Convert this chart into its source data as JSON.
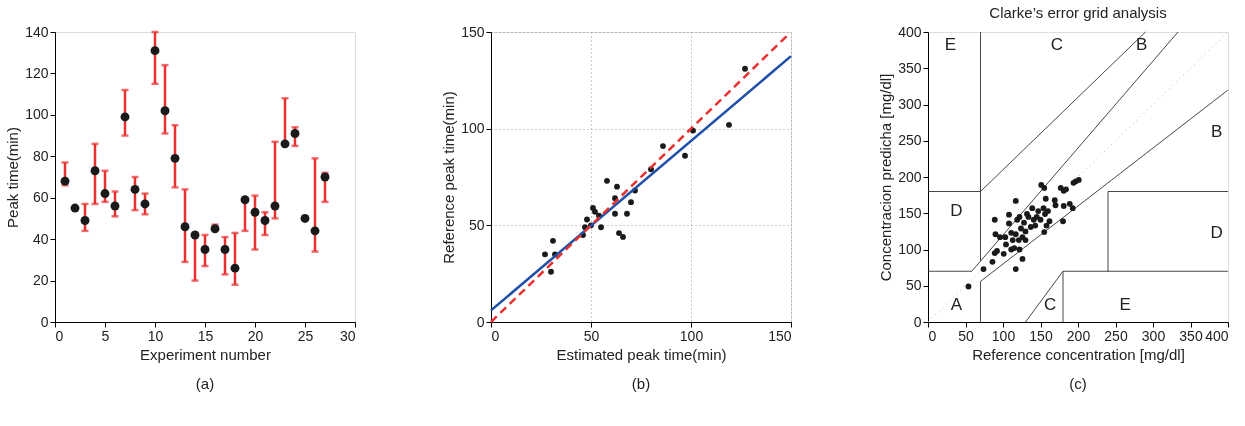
{
  "chart_data": [
    {
      "type": "scatter",
      "xlabel": "Experiment number",
      "ylabel": "Peak time(min)",
      "marker": "circle",
      "xlim": [
        0,
        30
      ],
      "xticks": [
        0,
        5,
        10,
        15,
        20,
        25,
        30
      ],
      "ylim": [
        0,
        140
      ],
      "yticks": [
        0,
        20,
        40,
        60,
        80,
        100,
        120,
        140
      ],
      "annotations": [
        "(a)"
      ],
      "x": [
        1,
        2,
        3,
        4,
        5,
        6,
        7,
        8,
        9,
        10,
        11,
        12,
        13,
        14,
        15,
        16,
        17,
        18,
        19,
        20,
        21,
        22,
        23,
        24,
        25,
        26,
        27
      ],
      "series": [
        {
          "color": "#1a1a1a",
          "values": [
            68,
            55,
            49,
            73,
            62,
            56,
            99,
            64,
            57,
            131,
            102,
            79,
            46,
            42,
            35,
            45,
            35,
            26,
            59,
            53,
            49,
            56,
            86,
            91,
            50,
            44,
            70
          ],
          "errors": [
            [
              66,
              77
            ],
            null,
            [
              44,
              57
            ],
            [
              57,
              86
            ],
            [
              58,
              73
            ],
            [
              51,
              63
            ],
            [
              90,
              112
            ],
            [
              54,
              70
            ],
            [
              52,
              62
            ],
            [
              115,
              140
            ],
            [
              91,
              124
            ],
            [
              65,
              95
            ],
            [
              29,
              64
            ],
            [
              20,
              42
            ],
            [
              27,
              42
            ],
            [
              45,
              47
            ],
            [
              23,
              41
            ],
            [
              18,
              43
            ],
            [
              44,
              59
            ],
            [
              35,
              61
            ],
            [
              42,
              53
            ],
            [
              50,
              87
            ],
            [
              86,
              108
            ],
            [
              85,
              94
            ],
            null,
            [
              34,
              79
            ],
            [
              58,
              72
            ]
          ]
        }
      ]
    },
    {
      "type": "scatter",
      "xlabel": "Estimated peak time(min)",
      "ylabel": "Reference peak time(min)",
      "grid": true,
      "xlim": [
        0,
        150
      ],
      "xticks": [
        0,
        50,
        100,
        150
      ],
      "ylim": [
        0,
        150
      ],
      "yticks": [
        0,
        50,
        100,
        150
      ],
      "annotations": [
        "(b)"
      ],
      "series": [
        {
          "type": "scatter",
          "color": "#1a1a1a",
          "x": [
            27,
            31,
            32,
            30,
            46,
            47,
            48,
            50,
            51,
            52,
            54,
            55,
            58,
            62,
            62,
            63,
            64,
            66,
            68,
            70,
            72,
            80,
            86,
            97,
            101,
            119,
            127
          ],
          "values": [
            35,
            42,
            35,
            26,
            45,
            49,
            53,
            50,
            59,
            57,
            55,
            49,
            73,
            64,
            56,
            70,
            46,
            44,
            56,
            62,
            68,
            79,
            91,
            86,
            99,
            102,
            131
          ]
        },
        {
          "type": "line",
          "color": "#1f4fa8",
          "line_style": "solid",
          "x": [
            0,
            150
          ],
          "values": [
            6,
            137.5
          ]
        },
        {
          "type": "line",
          "color": "#e8312f",
          "line_style": "dashed",
          "x": [
            0,
            148
          ],
          "values": [
            0,
            148
          ]
        }
      ]
    },
    {
      "type": "scatter",
      "title": "Clarke’s error grid analysis",
      "xlabel": "Reference concentration [mg/dl]",
      "ylabel": "Concentracion predicha [mg/dl]",
      "xlim": [
        0,
        400
      ],
      "xticks": [
        0,
        50,
        100,
        150,
        200,
        250,
        300,
        350,
        400
      ],
      "ylim": [
        0,
        400
      ],
      "yticks": [
        0,
        50,
        100,
        150,
        200,
        250,
        300,
        350,
        400
      ],
      "annotations": [
        "(c)",
        "E",
        "C",
        "B",
        "B",
        "D",
        "D",
        "A",
        "C",
        "E"
      ],
      "series": [
        {
          "type": "line",
          "color": "#aaaaaa",
          "line_style": "dotted",
          "x": [
            0,
            400
          ],
          "values": [
            0,
            400
          ]
        },
        {
          "type": "line",
          "color": "#333333",
          "line_style": "solid",
          "x": [
            0,
            58.33,
            333.33
          ],
          "values": [
            70,
            70,
            400
          ]
        },
        {
          "type": "line",
          "color": "#333333",
          "line_style": "solid",
          "x": [
            70,
            70
          ],
          "values": [
            84,
            400
          ]
        },
        {
          "type": "line",
          "color": "#333333",
          "line_style": "solid",
          "x": [
            0,
            70,
            290
          ],
          "values": [
            180,
            180,
            400
          ]
        },
        {
          "type": "line",
          "color": "#333333",
          "line_style": "solid",
          "x": [
            70,
            70,
            400
          ],
          "values": [
            0,
            56,
            320
          ]
        },
        {
          "type": "line",
          "color": "#333333",
          "line_style": "solid",
          "x": [
            130,
            180,
            400
          ],
          "values": [
            0,
            70,
            70
          ]
        },
        {
          "type": "line",
          "color": "#333333",
          "line_style": "solid",
          "x": [
            180,
            180
          ],
          "values": [
            0,
            70
          ]
        },
        {
          "type": "line",
          "color": "#333333",
          "line_style": "solid",
          "x": [
            240,
            240,
            400
          ],
          "values": [
            70,
            180,
            180
          ]
        },
        {
          "type": "scatter",
          "color": "#1a1a1a",
          "x": [
            54,
            74,
            86,
            89,
            90,
            89,
            92,
            101,
            108,
            108,
            117,
            117,
            126,
            103,
            104,
            111,
            113,
            117,
            121,
            124,
            126,
            128,
            130,
            134,
            137,
            141,
            143,
            147,
            151,
            150,
            154,
            155,
            155,
            157,
            160,
            162,
            169,
            170,
            177,
            181,
            184,
            180,
            181,
            189,
            193,
            194,
            197,
            201,
            96,
            119,
            122,
            132,
            139,
            156,
            111,
            115,
            122,
            130,
            145,
            158
          ],
          "values": [
            49,
            73,
            83,
            141,
            121,
            95,
            98,
            94,
            148,
            136,
            167,
            73,
            87,
            117,
            107,
            100,
            113,
            121,
            113,
            129,
            117,
            137,
            125,
            145,
            131,
            141,
            133,
            153,
            189,
            141,
            157,
            185,
            124,
            170,
            153,
            139,
            168,
            161,
            185,
            181,
            183,
            139,
            160,
            163,
            157,
            192,
            194,
            196,
            117,
            141,
            145,
            149,
            157,
            149,
            123,
            102,
            100,
            113,
            145,
            133
          ]
        }
      ]
    }
  ]
}
